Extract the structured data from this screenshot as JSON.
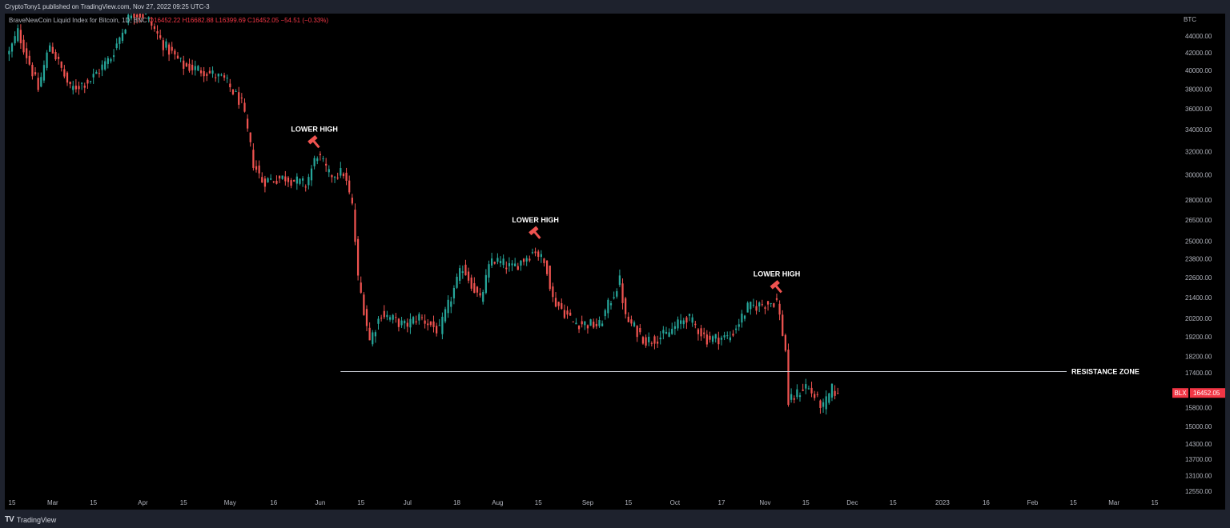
{
  "publish_line": "CryptoTony1 published on TradingView.com, Nov 27, 2022 09:25 UTC-3",
  "symbol": {
    "name": "BraveNewCoin Liquid Index for Bitcoin, 1D, BNC",
    "open": "O16452.22",
    "high": "H16682.88",
    "low": "L16399.69",
    "close": "C16452.05",
    "change": "−54.51 (−0.33%)"
  },
  "currency": "BTC",
  "last_price": {
    "tag": "BLX",
    "value": "16452.05",
    "color": "#f23645"
  },
  "footer_brand": "TradingView",
  "colors": {
    "up": "#26a69a",
    "down": "#ef5350",
    "background": "#000000",
    "line": "#d1d4dc"
  },
  "chart_data": {
    "type": "candlestick",
    "y_scale": "log",
    "y_ticks": [
      44000,
      42000,
      40000,
      38000,
      36000,
      34000,
      32000,
      30000,
      28000,
      26500,
      25000,
      23800,
      22600,
      21400,
      20200,
      19200,
      18200,
      17400,
      15800,
      15000,
      14300,
      13700,
      13100,
      12550
    ],
    "y_tick_labels": [
      "44000.00",
      "42000.00",
      "40000.00",
      "38000.00",
      "36000.00",
      "34000.00",
      "32000.00",
      "30000.00",
      "28000.00",
      "26500.00",
      "25000.00",
      "23800.00",
      "22600.00",
      "21400.00",
      "20200.00",
      "19200.00",
      "18200.00",
      "17400.00",
      "15800.00",
      "15000.00",
      "14300.00",
      "13700.00",
      "13100.00",
      "12550.00"
    ],
    "x_ticks": [
      {
        "label": "15",
        "date": "2022-02-15"
      },
      {
        "label": "Mar",
        "date": "2022-03-01"
      },
      {
        "label": "15",
        "date": "2022-03-15"
      },
      {
        "label": "Apr",
        "date": "2022-04-01"
      },
      {
        "label": "15",
        "date": "2022-04-15"
      },
      {
        "label": "May",
        "date": "2022-05-01"
      },
      {
        "label": "16",
        "date": "2022-05-16"
      },
      {
        "label": "Jun",
        "date": "2022-06-01"
      },
      {
        "label": "15",
        "date": "2022-06-15"
      },
      {
        "label": "Jul",
        "date": "2022-07-01"
      },
      {
        "label": "18",
        "date": "2022-07-18"
      },
      {
        "label": "Aug",
        "date": "2022-08-01"
      },
      {
        "label": "15",
        "date": "2022-08-15"
      },
      {
        "label": "Sep",
        "date": "2022-09-01"
      },
      {
        "label": "15",
        "date": "2022-09-15"
      },
      {
        "label": "Oct",
        "date": "2022-10-01"
      },
      {
        "label": "17",
        "date": "2022-10-17"
      },
      {
        "label": "Nov",
        "date": "2022-11-01"
      },
      {
        "label": "15",
        "date": "2022-11-15"
      },
      {
        "label": "Dec",
        "date": "2022-12-01"
      },
      {
        "label": "15",
        "date": "2022-12-15"
      },
      {
        "label": "2023",
        "date": "2023-01-01"
      },
      {
        "label": "16",
        "date": "2023-01-16"
      },
      {
        "label": "Feb",
        "date": "2023-02-01"
      },
      {
        "label": "15",
        "date": "2023-02-15"
      },
      {
        "label": "Mar",
        "date": "2023-03-01"
      },
      {
        "label": "15",
        "date": "2023-03-15"
      }
    ],
    "close_path": [
      [
        "2022-02-14",
        42000
      ],
      [
        "2022-02-17",
        44500
      ],
      [
        "2022-02-24",
        38000
      ],
      [
        "2022-02-28",
        43000
      ],
      [
        "2022-03-07",
        38000
      ],
      [
        "2022-03-14",
        39000
      ],
      [
        "2022-03-21",
        41500
      ],
      [
        "2022-03-28",
        47000
      ],
      [
        "2022-04-02",
        46500
      ],
      [
        "2022-04-08",
        43000
      ],
      [
        "2022-04-15",
        40500
      ],
      [
        "2022-04-22",
        40000
      ],
      [
        "2022-04-29",
        39000
      ],
      [
        "2022-05-05",
        36500
      ],
      [
        "2022-05-09",
        31000
      ],
      [
        "2022-05-12",
        29500
      ],
      [
        "2022-05-20",
        29800
      ],
      [
        "2022-05-27",
        29200
      ],
      [
        "2022-05-31",
        31800
      ],
      [
        "2022-06-04",
        30000
      ],
      [
        "2022-06-09",
        30200
      ],
      [
        "2022-06-12",
        27500
      ],
      [
        "2022-06-14",
        22500
      ],
      [
        "2022-06-18",
        19000
      ],
      [
        "2022-06-22",
        20500
      ],
      [
        "2022-06-30",
        19800
      ],
      [
        "2022-07-05",
        20300
      ],
      [
        "2022-07-12",
        19500
      ],
      [
        "2022-07-20",
        23300
      ],
      [
        "2022-07-26",
        21200
      ],
      [
        "2022-07-30",
        23800
      ],
      [
        "2022-08-06",
        23200
      ],
      [
        "2022-08-14",
        24400
      ],
      [
        "2022-08-18",
        23200
      ],
      [
        "2022-08-20",
        21300
      ],
      [
        "2022-08-27",
        20000
      ],
      [
        "2022-09-05",
        19800
      ],
      [
        "2022-09-12",
        22400
      ],
      [
        "2022-09-14",
        20200
      ],
      [
        "2022-09-21",
        19000
      ],
      [
        "2022-09-28",
        19300
      ],
      [
        "2022-10-05",
        20300
      ],
      [
        "2022-10-12",
        19100
      ],
      [
        "2022-10-20",
        19200
      ],
      [
        "2022-10-26",
        20800
      ],
      [
        "2022-11-05",
        21200
      ],
      [
        "2022-11-08",
        18500
      ],
      [
        "2022-11-09",
        16000
      ],
      [
        "2022-11-15",
        16800
      ],
      [
        "2022-11-21",
        15800
      ],
      [
        "2022-11-24",
        16600
      ],
      [
        "2022-11-26",
        16452.05
      ]
    ],
    "last_candle": {
      "date": "2022-11-26",
      "open": 16452.22,
      "high": 16682.88,
      "low": 16399.69,
      "close": 16452.05
    },
    "resistance_zone": {
      "price": 17450,
      "from": "2022-06-08",
      "label": "RESISTANCE ZONE"
    },
    "annotations": [
      {
        "label": "LOWER HIGH",
        "date": "2022-05-30",
        "price": 32500
      },
      {
        "label": "LOWER HIGH",
        "date": "2022-08-14",
        "price": 25300
      },
      {
        "label": "LOWER HIGH",
        "date": "2022-11-05",
        "price": 21800
      }
    ]
  }
}
